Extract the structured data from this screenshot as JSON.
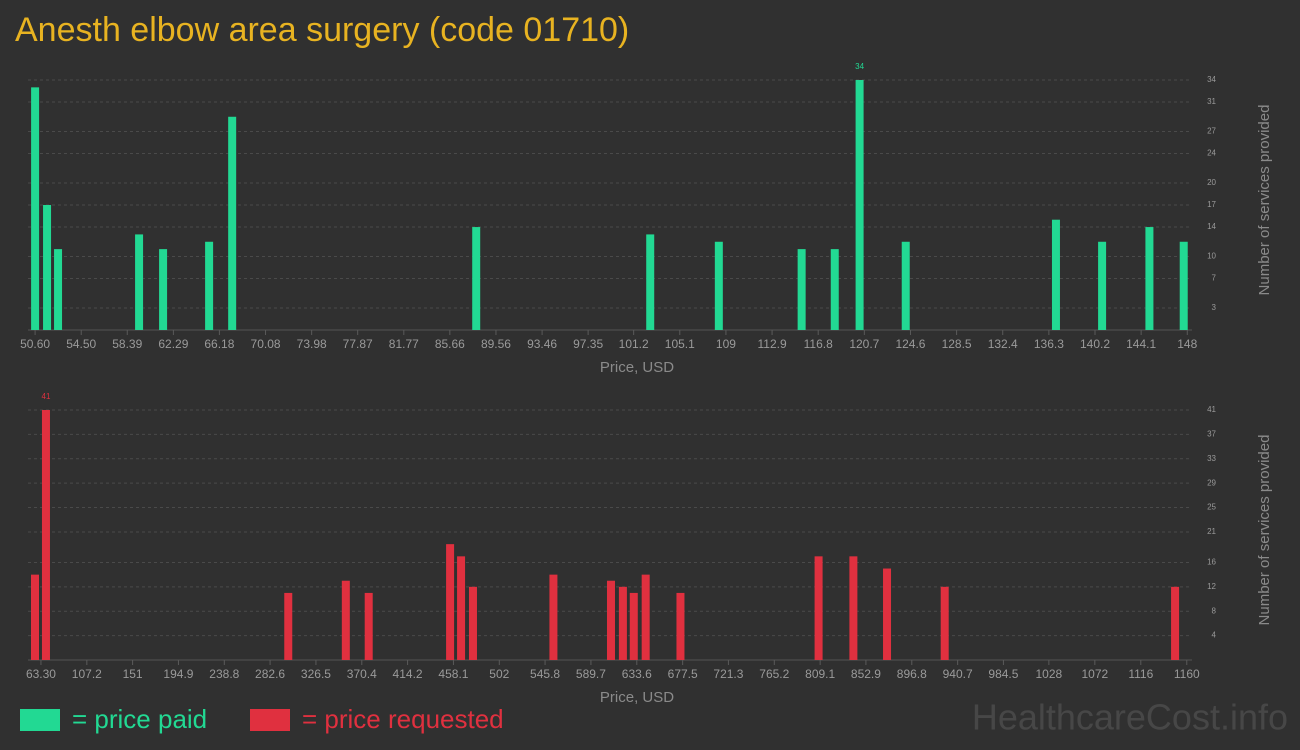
{
  "title": "Anesth elbow area surgery (code 01710)",
  "watermark": "HealthcareCost.info",
  "chart_data": [
    {
      "type": "bar",
      "x_label": "Price, USD",
      "y_label": "Number of services provided",
      "x": [
        50.6,
        51.61,
        52.54,
        59.39,
        61.42,
        65.31,
        67.26,
        87.89,
        102.6,
        108.4,
        115.4,
        118.2,
        120.3,
        124.2,
        136.9,
        140.8,
        144.8,
        147.7
      ],
      "series": [
        {
          "name": "= price paid",
          "color": "#22d993",
          "values": [
            33,
            17,
            11,
            13,
            11,
            12,
            29,
            14,
            13,
            12,
            11,
            11,
            34,
            12,
            15,
            12,
            14,
            12
          ]
        }
      ],
      "xlim": [
        50.0,
        148.4
      ],
      "xticks": [
        {
          "value": 50.6,
          "label": "50.60"
        },
        {
          "value": 54.5,
          "label": "54.50"
        },
        58.39,
        62.29,
        66.18,
        70.08,
        73.98,
        77.87,
        81.77,
        85.66,
        89.56,
        93.46,
        97.35,
        101.2,
        105.1,
        109,
        112.9,
        116.8,
        120.7,
        124.6,
        128.5,
        132.4,
        136.3,
        140.2,
        144.1,
        148
      ],
      "ylim": [
        0,
        34
      ],
      "yticks": [
        3,
        7,
        10,
        14,
        17,
        20,
        24,
        27,
        31,
        34
      ],
      "grid": true
    },
    {
      "type": "bar",
      "x_label": "Price, USD",
      "y_label": "Number of services provided",
      "x": [
        57.6,
        68.1,
        300.0,
        355.1,
        377.0,
        454.9,
        465.4,
        476.8,
        553.8,
        608.9,
        620.3,
        630.7,
        642.1,
        675.4,
        807.6,
        840.9,
        873.1,
        928.3,
        1148.8
      ],
      "series": [
        {
          "name": "= price requested",
          "color": "#e0303f",
          "values": [
            14,
            41,
            11,
            13,
            11,
            19,
            17,
            12,
            14,
            13,
            12,
            11,
            14,
            11,
            17,
            17,
            15,
            12,
            12
          ]
        }
      ],
      "xlim": [
        50.9,
        1165
      ],
      "xticks": [
        {
          "value": 63.3,
          "label": "63.30"
        },
        107.2,
        151,
        194.9,
        238.8,
        282.6,
        326.5,
        370.4,
        414.2,
        458.1,
        502,
        545.8,
        589.7,
        633.6,
        677.5,
        721.3,
        765.2,
        809.1,
        852.9,
        896.8,
        940.7,
        984.5,
        1028,
        1072,
        1116,
        1160
      ],
      "ylim": [
        0,
        41
      ],
      "yticks": [
        4,
        8,
        12,
        16,
        21,
        25,
        29,
        33,
        37,
        41
      ],
      "grid": true
    }
  ]
}
